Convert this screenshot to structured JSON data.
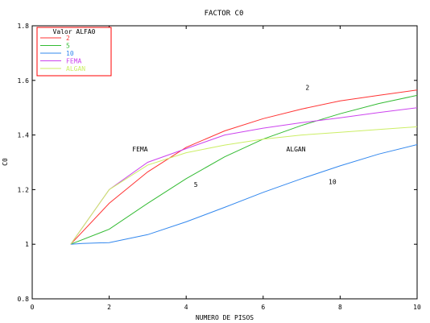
{
  "chart_data": {
    "type": "line",
    "title": "FACTOR C0",
    "xlabel": "NUMERO DE PISOS",
    "ylabel": "C0",
    "xlim": [
      0,
      10
    ],
    "ylim": [
      0.8,
      1.8
    ],
    "xticks": [
      0,
      2,
      4,
      6,
      8,
      10
    ],
    "yticks": [
      0.8,
      1,
      1.2,
      1.4,
      1.6,
      1.8
    ],
    "xtick_labels": [
      "0",
      "2",
      "4",
      "6",
      "8",
      "10"
    ],
    "ytick_labels": [
      "0.8",
      "1",
      "1.2",
      "1.4",
      "1.6",
      "1.8"
    ],
    "grid": false,
    "legend": {
      "title": "Valor ALFA0",
      "position": "top-left",
      "border_color": "#ff0000"
    },
    "series": [
      {
        "name": "2",
        "color": "#ff3333",
        "points": [
          [
            1,
            1.0
          ],
          [
            2,
            1.15
          ],
          [
            3,
            1.265
          ],
          [
            4,
            1.355
          ],
          [
            5,
            1.415
          ],
          [
            6,
            1.46
          ],
          [
            7,
            1.495
          ],
          [
            8,
            1.525
          ],
          [
            9,
            1.545
          ],
          [
            10,
            1.565
          ]
        ]
      },
      {
        "name": "5",
        "color": "#33bb33",
        "points": [
          [
            1,
            1.0
          ],
          [
            2,
            1.055
          ],
          [
            3,
            1.15
          ],
          [
            4,
            1.24
          ],
          [
            5,
            1.32
          ],
          [
            6,
            1.385
          ],
          [
            7,
            1.435
          ],
          [
            8,
            1.478
          ],
          [
            9,
            1.515
          ],
          [
            10,
            1.545
          ]
        ]
      },
      {
        "name": "10",
        "color": "#3388ee",
        "points": [
          [
            1,
            1.0
          ],
          [
            1.3,
            1.003
          ],
          [
            2,
            1.006
          ],
          [
            3,
            1.035
          ],
          [
            4,
            1.082
          ],
          [
            5,
            1.135
          ],
          [
            6,
            1.19
          ],
          [
            7,
            1.24
          ],
          [
            8,
            1.287
          ],
          [
            9,
            1.33
          ],
          [
            10,
            1.365
          ]
        ]
      },
      {
        "name": "FEMA",
        "color": "#cc44ee",
        "points": [
          [
            1,
            1.0
          ],
          [
            2,
            1.2
          ],
          [
            3,
            1.3
          ],
          [
            4,
            1.35
          ],
          [
            5,
            1.4
          ],
          [
            6,
            1.425
          ],
          [
            7,
            1.445
          ],
          [
            8,
            1.463
          ],
          [
            9,
            1.482
          ],
          [
            10,
            1.5
          ]
        ]
      },
      {
        "name": "ALGAN",
        "color": "#ccee66",
        "points": [
          [
            1,
            1.0
          ],
          [
            2,
            1.2
          ],
          [
            3,
            1.29
          ],
          [
            4,
            1.335
          ],
          [
            5,
            1.363
          ],
          [
            6,
            1.385
          ],
          [
            7,
            1.4
          ],
          [
            8,
            1.41
          ],
          [
            9,
            1.42
          ],
          [
            10,
            1.43
          ]
        ]
      }
    ],
    "annotations": [
      {
        "text": "2",
        "x": 7.1,
        "y": 1.565
      },
      {
        "text": "FEMA",
        "x": 2.6,
        "y": 1.34
      },
      {
        "text": "ALGAN",
        "x": 6.6,
        "y": 1.34
      },
      {
        "text": "5",
        "x": 4.2,
        "y": 1.21
      },
      {
        "text": "10",
        "x": 7.7,
        "y": 1.22
      }
    ]
  }
}
